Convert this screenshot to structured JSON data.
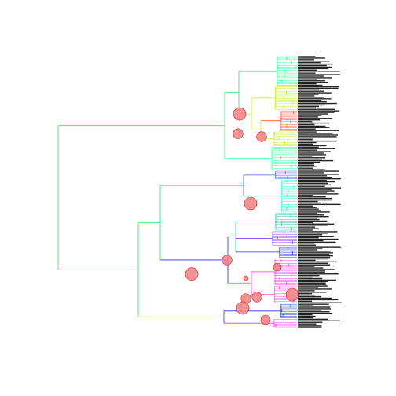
{
  "figure": {
    "type": "phylogram",
    "title": "",
    "tip_label_count": 180,
    "tip_labels_legible": false,
    "colors": {
      "green": "#33dd66",
      "spring": "#33ff99",
      "lime": "#bbee22",
      "yellow": "#ddee33",
      "orange_red": "#ff5a2e",
      "cyan": "#33ffcc",
      "teal": "#22ccaa",
      "blue": "#2233cc",
      "blue_light": "#4466ff",
      "violet": "#8844ff",
      "magenta": "#ff33ee",
      "pink": "#ff55cc",
      "node_marker_fill": "#f08080",
      "node_marker_stroke": "#cc2222",
      "label": "#000000"
    },
    "tip_color_bands": [
      {
        "color": "spring",
        "tips": 20
      },
      {
        "color": "lime",
        "tips": 16
      },
      {
        "color": "orange_red",
        "tips": 14
      },
      {
        "color": "lime",
        "tips": 10
      },
      {
        "color": "spring",
        "tips": 16
      },
      {
        "color": "blue_light",
        "tips": 6
      },
      {
        "color": "cyan",
        "tips": 22
      },
      {
        "color": "teal",
        "tips": 12
      },
      {
        "color": "violet",
        "tips": 10
      },
      {
        "color": "blue",
        "tips": 8
      },
      {
        "color": "magenta",
        "tips": 18
      },
      {
        "color": "pink",
        "tips": 12
      },
      {
        "color": "blue",
        "tips": 10
      },
      {
        "color": "magenta",
        "tips": 6
      }
    ],
    "node_markers": [
      {
        "clade": "upper-lime",
        "relative_size": 1.0
      },
      {
        "clade": "upper-yellow",
        "relative_size": 0.9
      },
      {
        "clade": "orange-red",
        "relative_size": 0.9
      },
      {
        "clade": "mid-cyan",
        "relative_size": 1.0
      },
      {
        "clade": "lower-teal",
        "relative_size": 0.9
      },
      {
        "clade": "lower-root",
        "relative_size": 1.0
      },
      {
        "clade": "magenta-a",
        "relative_size": 0.9
      },
      {
        "clade": "magenta-b",
        "relative_size": 1.0
      },
      {
        "clade": "magenta-c",
        "relative_size": 0.9
      },
      {
        "clade": "violet",
        "relative_size": 1.0
      },
      {
        "clade": "blue-tip",
        "relative_size": 0.6
      },
      {
        "clade": "violet-small",
        "relative_size": 0.7
      },
      {
        "clade": "pink-small",
        "relative_size": 0.4
      }
    ]
  }
}
